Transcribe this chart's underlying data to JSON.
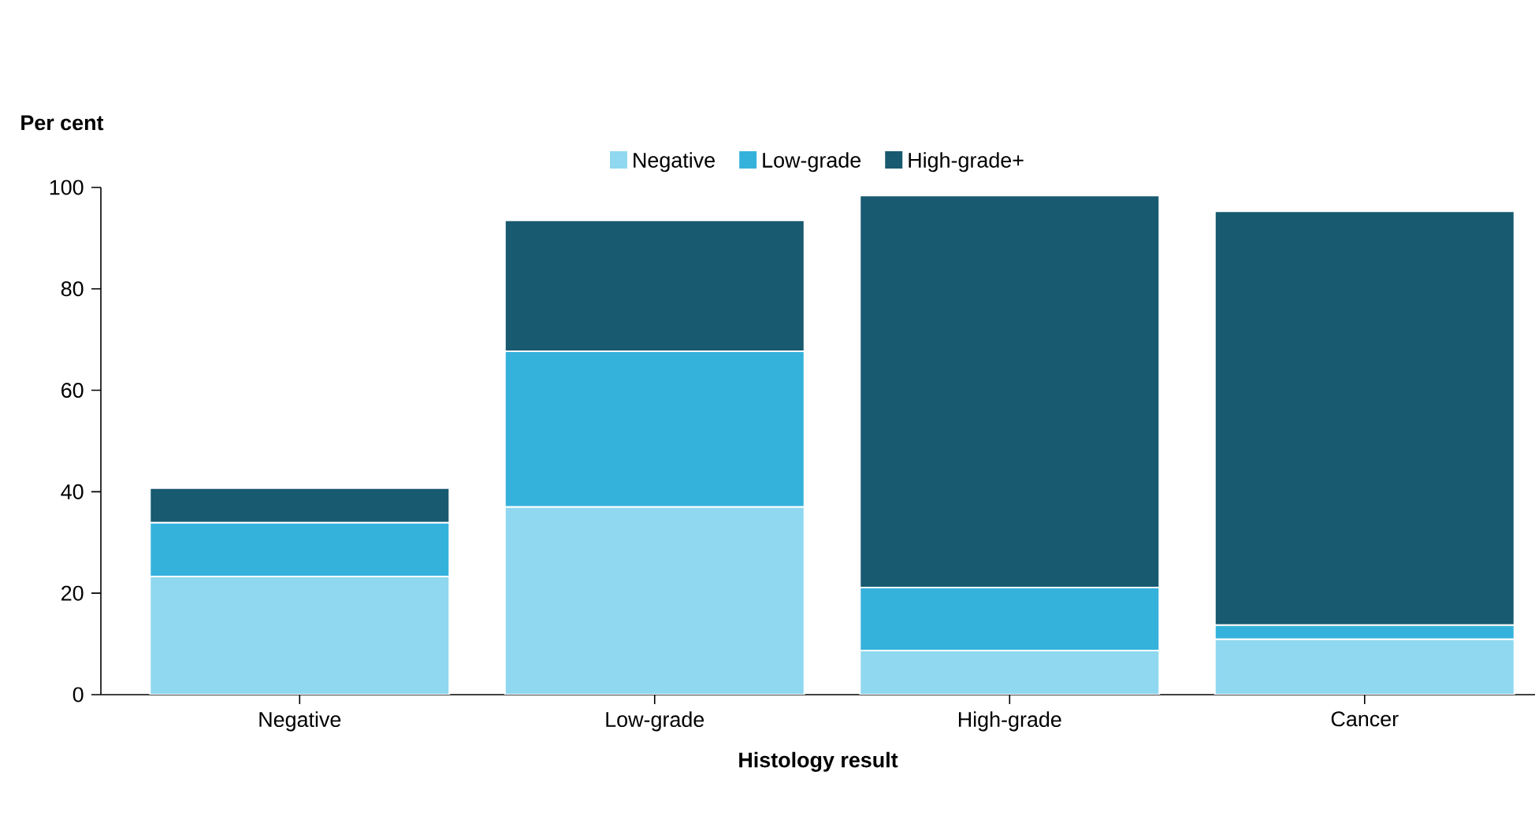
{
  "chart_data": {
    "type": "bar",
    "stacked": true,
    "xlabel": "Histology result",
    "ylabel": "Per cent",
    "categories": [
      "Negative",
      "Low-grade",
      "High-grade",
      "Cancer"
    ],
    "series": [
      {
        "name": "Negative",
        "color": "#8fd8f0",
        "values": [
          23.3,
          37,
          8.7,
          10.9
        ]
      },
      {
        "name": "Low-grade",
        "color": "#35b2dc",
        "values": [
          10.6,
          30.7,
          12.4,
          2.8
        ]
      },
      {
        "name": "High-grade+",
        "color": "#185a70",
        "values": [
          6.8,
          25.8,
          77.3,
          81.6
        ]
      }
    ],
    "ylim": [
      0,
      100
    ],
    "yticks": [
      0,
      20,
      40,
      60,
      80,
      100
    ],
    "legend": "top",
    "grid": false
  }
}
